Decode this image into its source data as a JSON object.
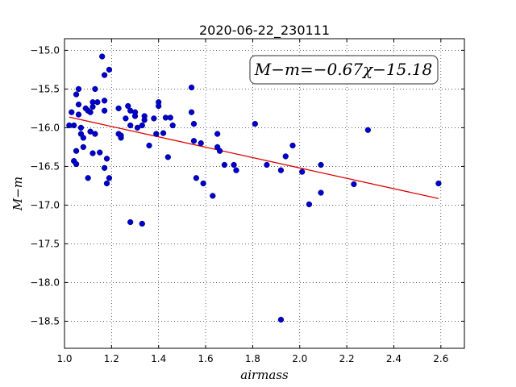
{
  "chart_data": {
    "type": "scatter",
    "title": "2020-06-22_230111",
    "xlabel": "airmass",
    "ylabel": "M−m",
    "annotation": "M−m=−0.67χ−15.18",
    "xlim": [
      1.0,
      2.7
    ],
    "ylim": [
      -18.85,
      -14.85
    ],
    "y_inverted": true,
    "grid": true,
    "x_ticks": [
      1.0,
      1.2,
      1.4,
      1.6,
      1.8,
      2.0,
      2.2,
      2.4,
      2.6
    ],
    "x_tick_labels": [
      "1.0",
      "1.2",
      "1.4",
      "1.6",
      "1.8",
      "2.0",
      "2.2",
      "2.4",
      "2.6"
    ],
    "y_ticks": [
      -15.0,
      -15.5,
      -16.0,
      -16.5,
      -17.0,
      -17.5,
      -18.0,
      -18.5
    ],
    "y_tick_labels": [
      "−15.0",
      "−15.5",
      "−16.0",
      "−16.5",
      "−17.0",
      "−17.5",
      "−18.0",
      "−18.5"
    ],
    "point_color": "#0000cc",
    "line_color": "#dd0000",
    "fit": {
      "slope": -0.67,
      "intercept": -15.18,
      "x_range": [
        1.02,
        2.59
      ]
    },
    "points": [
      [
        1.02,
        -15.97
      ],
      [
        1.03,
        -15.8
      ],
      [
        1.04,
        -16.43
      ],
      [
        1.04,
        -15.97
      ],
      [
        1.05,
        -16.47
      ],
      [
        1.05,
        -16.3
      ],
      [
        1.05,
        -15.57
      ],
      [
        1.06,
        -15.83
      ],
      [
        1.06,
        -15.5
      ],
      [
        1.06,
        -15.7
      ],
      [
        1.07,
        -16.08
      ],
      [
        1.07,
        -16.0
      ],
      [
        1.08,
        -16.13
      ],
      [
        1.08,
        -16.25
      ],
      [
        1.09,
        -15.75
      ],
      [
        1.1,
        -16.65
      ],
      [
        1.1,
        -15.78
      ],
      [
        1.11,
        -16.05
      ],
      [
        1.11,
        -15.8
      ],
      [
        1.12,
        -15.67
      ],
      [
        1.12,
        -15.73
      ],
      [
        1.12,
        -16.33
      ],
      [
        1.13,
        -16.08
      ],
      [
        1.13,
        -15.5
      ],
      [
        1.14,
        -15.67
      ],
      [
        1.15,
        -16.32
      ],
      [
        1.16,
        -15.08
      ],
      [
        1.17,
        -15.32
      ],
      [
        1.17,
        -15.65
      ],
      [
        1.17,
        -15.78
      ],
      [
        1.17,
        -16.52
      ],
      [
        1.18,
        -16.72
      ],
      [
        1.18,
        -16.4
      ],
      [
        1.19,
        -16.65
      ],
      [
        1.19,
        -15.25
      ],
      [
        1.23,
        -16.08
      ],
      [
        1.23,
        -15.75
      ],
      [
        1.24,
        -16.13
      ],
      [
        1.24,
        -16.1
      ],
      [
        1.26,
        -15.88
      ],
      [
        1.27,
        -15.72
      ],
      [
        1.28,
        -15.78
      ],
      [
        1.28,
        -15.97
      ],
      [
        1.28,
        -17.22
      ],
      [
        1.3,
        -15.85
      ],
      [
        1.3,
        -15.8
      ],
      [
        1.31,
        -16.0
      ],
      [
        1.33,
        -17.24
      ],
      [
        1.33,
        -15.97
      ],
      [
        1.34,
        -15.85
      ],
      [
        1.34,
        -15.9
      ],
      [
        1.36,
        -16.23
      ],
      [
        1.38,
        -15.88
      ],
      [
        1.39,
        -16.08
      ],
      [
        1.4,
        -15.67
      ],
      [
        1.4,
        -15.72
      ],
      [
        1.42,
        -16.07
      ],
      [
        1.43,
        -15.87
      ],
      [
        1.44,
        -16.38
      ],
      [
        1.45,
        -15.87
      ],
      [
        1.46,
        -15.97
      ],
      [
        1.54,
        -15.48
      ],
      [
        1.54,
        -15.8
      ],
      [
        1.55,
        -16.17
      ],
      [
        1.55,
        -15.95
      ],
      [
        1.56,
        -16.65
      ],
      [
        1.58,
        -16.2
      ],
      [
        1.59,
        -16.72
      ],
      [
        1.63,
        -16.88
      ],
      [
        1.65,
        -16.08
      ],
      [
        1.65,
        -16.25
      ],
      [
        1.66,
        -16.3
      ],
      [
        1.68,
        -16.48
      ],
      [
        1.72,
        -16.48
      ],
      [
        1.73,
        -16.55
      ],
      [
        1.81,
        -15.95
      ],
      [
        1.86,
        -16.48
      ],
      [
        1.92,
        -16.55
      ],
      [
        1.92,
        -18.48
      ],
      [
        1.94,
        -16.37
      ],
      [
        1.97,
        -16.23
      ],
      [
        2.01,
        -16.57
      ],
      [
        2.04,
        -16.99
      ],
      [
        2.09,
        -16.48
      ],
      [
        2.09,
        -16.84
      ],
      [
        2.23,
        -16.73
      ],
      [
        2.29,
        -16.03
      ],
      [
        2.59,
        -16.72
      ]
    ]
  }
}
